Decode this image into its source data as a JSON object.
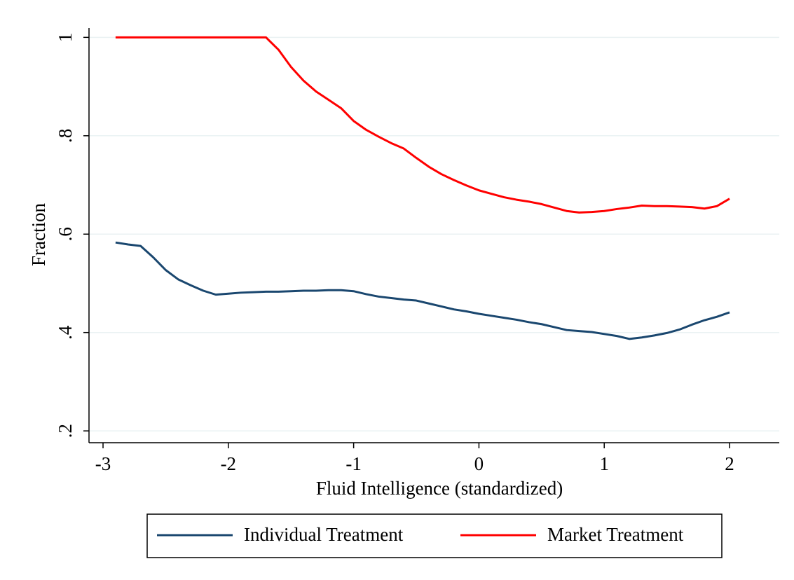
{
  "chart_data": {
    "type": "line",
    "x_label": "Fluid Intelligence (standardized)",
    "y_label": "Fraction",
    "x": [
      -2.9,
      -2.8,
      -2.7,
      -2.6,
      -2.5,
      -2.4,
      -2.3,
      -2.2,
      -2.1,
      -2.0,
      -1.9,
      -1.8,
      -1.7,
      -1.6,
      -1.5,
      -1.4,
      -1.3,
      -1.2,
      -1.1,
      -1.0,
      -0.9,
      -0.8,
      -0.7,
      -0.6,
      -0.5,
      -0.4,
      -0.3,
      -0.2,
      -0.1,
      0,
      0.1,
      0.2,
      0.3,
      0.4,
      0.5,
      0.6,
      0.7,
      0.8,
      0.9,
      1.0,
      1.1,
      1.2,
      1.3,
      1.4,
      1.5,
      1.6,
      1.7,
      1.8,
      1.9,
      2.0
    ],
    "series": [
      {
        "name": "Individual Treatment",
        "color": "#1a476f",
        "values": [
          0.583,
          0.579,
          0.576,
          0.553,
          0.527,
          0.508,
          0.496,
          0.485,
          0.477,
          0.479,
          0.481,
          0.482,
          0.483,
          0.483,
          0.484,
          0.485,
          0.485,
          0.486,
          0.486,
          0.484,
          0.478,
          0.473,
          0.47,
          0.467,
          0.465,
          0.459,
          0.453,
          0.447,
          0.443,
          0.438,
          0.434,
          0.43,
          0.426,
          0.421,
          0.417,
          0.411,
          0.405,
          0.403,
          0.401,
          0.397,
          0.393,
          0.387,
          0.39,
          0.394,
          0.399,
          0.406,
          0.416,
          0.425,
          0.432,
          0.441
        ]
      },
      {
        "name": "Market Treatment",
        "color": "#ff0000",
        "values": [
          1,
          1,
          1,
          1,
          1,
          1,
          1,
          1,
          1,
          1,
          1,
          1,
          1,
          0.975,
          0.94,
          0.912,
          0.89,
          0.873,
          0.856,
          0.83,
          0.812,
          0.798,
          0.785,
          0.774,
          0.755,
          0.737,
          0.722,
          0.71,
          0.699,
          0.689,
          0.682,
          0.675,
          0.67,
          0.666,
          0.661,
          0.654,
          0.647,
          0.644,
          0.645,
          0.647,
          0.651,
          0.654,
          0.658,
          0.657,
          0.657,
          0.656,
          0.655,
          0.652,
          0.657,
          0.672
        ]
      }
    ],
    "xlim": [
      -3.112,
      2.397
    ],
    "xticks": [
      -3,
      -2,
      -1,
      0,
      1,
      2
    ],
    "ylim": [
      0.176,
      1.019
    ],
    "yticks": [
      {
        "value": 0.2,
        "label": ".2"
      },
      {
        "value": 0.4,
        "label": ".4"
      },
      {
        "value": 0.6,
        "label": ".6"
      },
      {
        "value": 0.8,
        "label": ".8"
      },
      1
    ],
    "grid": true,
    "legend": "bottom"
  }
}
